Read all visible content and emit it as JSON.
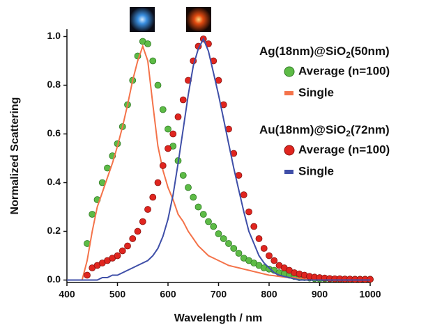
{
  "chart_data": {
    "type": "scatter",
    "x_label": "Wavelength / nm",
    "y_label": "Normalized Scattering",
    "xlim": [
      400,
      1000
    ],
    "xticks": [
      400,
      500,
      600,
      700,
      800,
      900,
      1000
    ],
    "ylim": [
      -0.01,
      1.03
    ],
    "yticks": [
      {
        "value": 0,
        "label": "0.0"
      },
      0.2,
      0.4,
      0.6,
      0.8,
      {
        "value": 1,
        "label": "1.0"
      }
    ],
    "legend_titles": [
      {
        "text": "Ag(18nm)@SiO",
        "sub": "2",
        "suffix": "(50nm)"
      },
      {
        "text": "Au(18nm)@SiO",
        "sub": "2",
        "suffix": "(72nm)"
      }
    ],
    "x": [
      400,
      410,
      420,
      430,
      440,
      450,
      460,
      470,
      480,
      490,
      500,
      510,
      520,
      530,
      540,
      550,
      560,
      570,
      580,
      590,
      600,
      610,
      620,
      630,
      640,
      650,
      660,
      670,
      680,
      690,
      700,
      710,
      720,
      730,
      740,
      750,
      760,
      770,
      780,
      790,
      800,
      810,
      820,
      830,
      840,
      850,
      860,
      870,
      880,
      890,
      900,
      910,
      920,
      930,
      940,
      950,
      960,
      970,
      980,
      990,
      1000
    ],
    "series": [
      {
        "name": "Average (n=100)",
        "style": "markers",
        "color": "#5dbb46",
        "edge": "#2f7a25",
        "values": [
          null,
          null,
          null,
          null,
          0.15,
          0.27,
          0.33,
          0.4,
          0.46,
          0.51,
          0.56,
          0.63,
          0.72,
          0.82,
          0.92,
          0.98,
          0.97,
          0.9,
          0.8,
          0.7,
          0.62,
          0.55,
          0.49,
          0.43,
          0.38,
          0.34,
          0.3,
          0.27,
          0.24,
          0.22,
          0.19,
          0.17,
          0.15,
          0.13,
          0.11,
          0.09,
          0.08,
          0.07,
          0.06,
          0.05,
          0.045,
          0.04,
          0.03,
          0.025,
          0.02,
          0.015,
          0.01,
          0.01,
          0.008,
          0.006,
          0.005,
          0.005,
          0.005,
          0.004,
          0.004,
          0.004,
          0.003,
          0.003,
          0.003,
          0.003,
          0.003
        ]
      },
      {
        "name": "Single",
        "style": "line",
        "color": "#f4734a",
        "values": [
          0,
          0,
          0,
          0,
          0.08,
          0.2,
          0.3,
          0.36,
          0.42,
          0.48,
          0.55,
          0.63,
          0.72,
          0.82,
          0.9,
          0.96,
          0.9,
          0.72,
          0.55,
          0.45,
          0.38,
          0.33,
          0.27,
          0.24,
          0.2,
          0.17,
          0.14,
          0.12,
          0.1,
          0.09,
          0.08,
          0.07,
          0.06,
          0.055,
          0.05,
          0.045,
          0.04,
          0.035,
          0.03,
          0.025,
          0.02,
          0.018,
          0.015,
          0.012,
          0.01,
          0.01,
          0.008,
          0.006,
          0.005,
          0.004,
          0.003,
          0.002,
          0.002,
          0.001,
          0.001,
          0,
          0,
          0,
          0,
          0,
          0
        ]
      },
      {
        "name": "Average (n=100)",
        "style": "markers",
        "color": "#e0251f",
        "edge": "#8a1410",
        "values": [
          null,
          null,
          null,
          null,
          0.02,
          0.05,
          0.06,
          0.07,
          0.08,
          0.09,
          0.1,
          0.12,
          0.14,
          0.17,
          0.2,
          0.24,
          0.29,
          0.34,
          0.4,
          0.47,
          0.54,
          0.6,
          0.67,
          0.74,
          0.82,
          0.9,
          0.96,
          0.99,
          0.97,
          0.9,
          0.82,
          0.72,
          0.62,
          0.52,
          0.43,
          0.35,
          0.28,
          0.22,
          0.17,
          0.13,
          0.1,
          0.08,
          0.06,
          0.05,
          0.04,
          0.03,
          0.025,
          0.02,
          0.015,
          0.012,
          0.01,
          0.008,
          0.006,
          0.005,
          0.005,
          0.004,
          0.004,
          0.003,
          0.003,
          0.003,
          0.003
        ]
      },
      {
        "name": "Single",
        "style": "line",
        "color": "#3f4fa8",
        "values": [
          0,
          0,
          0,
          0,
          0,
          0,
          0,
          0.01,
          0.01,
          0.02,
          0.02,
          0.03,
          0.04,
          0.05,
          0.06,
          0.07,
          0.08,
          0.1,
          0.13,
          0.18,
          0.25,
          0.35,
          0.48,
          0.62,
          0.76,
          0.88,
          0.95,
          0.99,
          0.94,
          0.85,
          0.76,
          0.66,
          0.56,
          0.46,
          0.37,
          0.28,
          0.2,
          0.15,
          0.1,
          0.07,
          0.05,
          0.03,
          0.02,
          0.015,
          0.01,
          0.005,
          0,
          0,
          0,
          0,
          0,
          0,
          0,
          0,
          0,
          0,
          0,
          0,
          0,
          0,
          0
        ]
      }
    ]
  }
}
